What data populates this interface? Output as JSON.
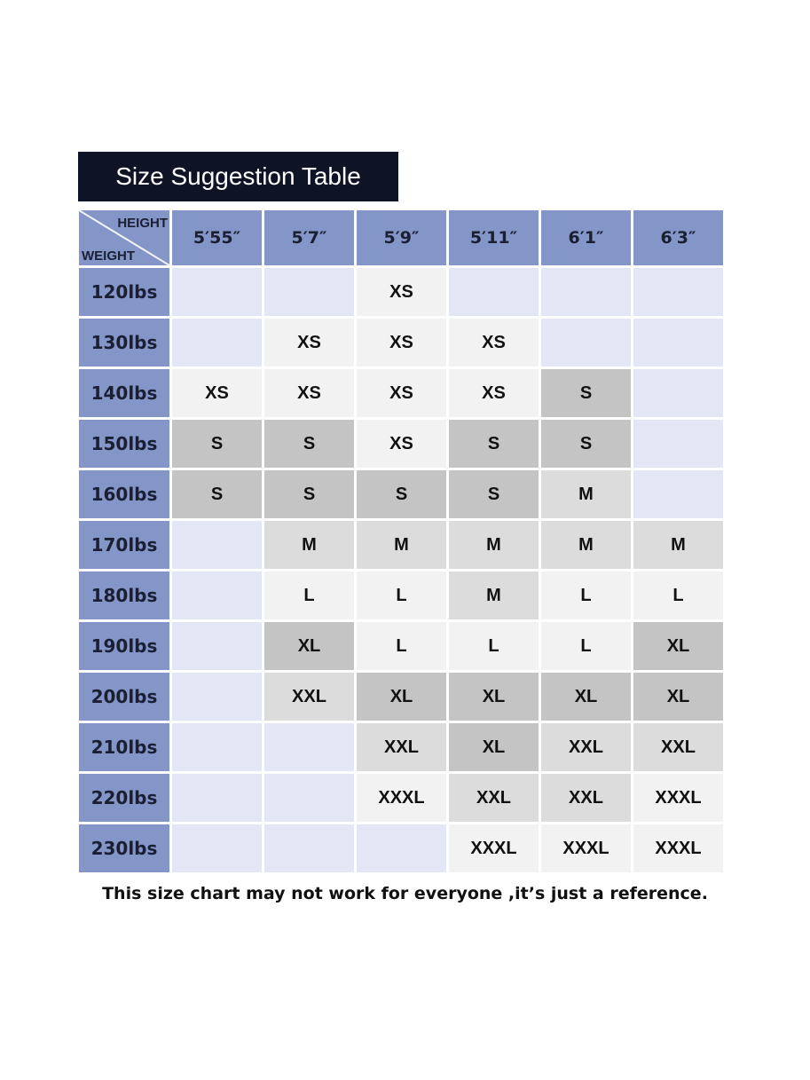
{
  "title": "Size Suggestion Table",
  "corner": {
    "height_label": "HEIGHT",
    "weight_label": "WEIGHT"
  },
  "heights": [
    "5′55″",
    "5′7″",
    "5′9″",
    "5′11″",
    "6′1″",
    "6′3″"
  ],
  "rows": [
    {
      "weight": "120lbs",
      "sizes": [
        "",
        "",
        "XS",
        "",
        "",
        ""
      ]
    },
    {
      "weight": "130lbs",
      "sizes": [
        "",
        "XS",
        "XS",
        "XS",
        "",
        ""
      ]
    },
    {
      "weight": "140lbs",
      "sizes": [
        "XS",
        "XS",
        "XS",
        "XS",
        "S",
        ""
      ]
    },
    {
      "weight": "150lbs",
      "sizes": [
        "S",
        "S",
        "XS",
        "S",
        "S",
        ""
      ]
    },
    {
      "weight": "160lbs",
      "sizes": [
        "S",
        "S",
        "S",
        "S",
        "M",
        ""
      ]
    },
    {
      "weight": "170lbs",
      "sizes": [
        "",
        "M",
        "M",
        "M",
        "M",
        "M"
      ]
    },
    {
      "weight": "180lbs",
      "sizes": [
        "",
        "L",
        "L",
        "M",
        "L",
        "L"
      ]
    },
    {
      "weight": "190lbs",
      "sizes": [
        "",
        "XL",
        "L",
        "L",
        "L",
        "XL"
      ]
    },
    {
      "weight": "200lbs",
      "sizes": [
        "",
        "XXL",
        "XL",
        "XL",
        "XL",
        "XL"
      ]
    },
    {
      "weight": "210lbs",
      "sizes": [
        "",
        "",
        "XXL",
        "XL",
        "XXL",
        "XXL"
      ]
    },
    {
      "weight": "220lbs",
      "sizes": [
        "",
        "",
        "XXXL",
        "XXL",
        "XXL",
        "XXXL"
      ]
    },
    {
      "weight": "230lbs",
      "sizes": [
        "",
        "",
        "",
        "XXXL",
        "XXXL",
        "XXXL"
      ]
    }
  ],
  "note": "This size chart may not work for everyone ,it’s just a reference.",
  "colors": {
    "header": "#8496c8",
    "title_bg": "#0e1325",
    "empty": "#e3e6f5",
    "XS": "#f2f2f2",
    "S": "#c4c4c4",
    "M": "#dcdcdc",
    "L": "#f2f2f2",
    "XL": "#c4c4c4",
    "XXL": "#dcdcdc",
    "XXXL": "#f2f2f2"
  }
}
